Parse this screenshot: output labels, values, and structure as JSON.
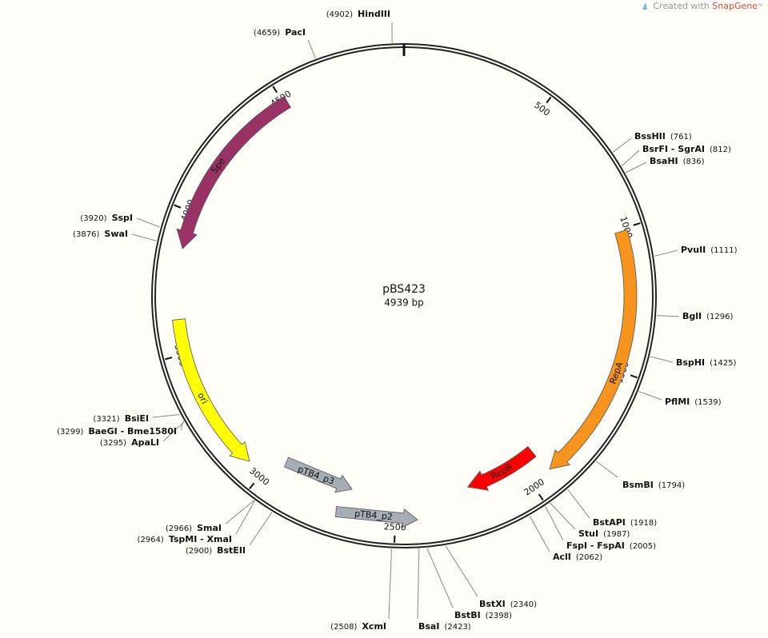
{
  "header": {
    "prefix": "Created with",
    "brand": "SnapGene",
    "tm": "™"
  },
  "plasmid": {
    "name": "pBS423",
    "size": {
      "value": 4939,
      "label": "4939 bp"
    }
  },
  "ticks": [
    500,
    1000,
    1500,
    2000,
    2500,
    3000,
    3500,
    4000,
    4500
  ],
  "features": [
    {
      "name": "Spe",
      "color": "#993366"
    },
    {
      "name": "RepA",
      "color": "#f7941d"
    },
    {
      "name": "ori",
      "color": "#ffff00"
    },
    {
      "name": "RepB",
      "color": "#ff0000"
    },
    {
      "name": "pTB4_p3",
      "color": "#a6adb4"
    },
    {
      "name": "pTB4_p2",
      "color": "#a6adb4"
    }
  ],
  "enzymes": [
    {
      "name": "HindIII",
      "site": {
        "value": 4902,
        "label": "(4902)"
      }
    },
    {
      "name": "PacI",
      "site": {
        "value": 4659,
        "label": "(4659)"
      }
    },
    {
      "name": "BssHII",
      "site": {
        "value": 761,
        "label": "(761)"
      }
    },
    {
      "name": "BsrFI - SgrAI",
      "site": {
        "value": 812,
        "label": "(812)"
      }
    },
    {
      "name": "BsaHI",
      "site": {
        "value": 836,
        "label": "(836)"
      }
    },
    {
      "name": "PvuII",
      "site": {
        "value": 1111,
        "label": "(1111)"
      }
    },
    {
      "name": "BglI",
      "site": {
        "value": 1296,
        "label": "(1296)"
      }
    },
    {
      "name": "BspHI",
      "site": {
        "value": 1425,
        "label": "(1425)"
      }
    },
    {
      "name": "PflMI",
      "site": {
        "value": 1539,
        "label": "(1539)"
      }
    },
    {
      "name": "BsmBI",
      "site": {
        "value": 1794,
        "label": "(1794)"
      }
    },
    {
      "name": "BstAPI",
      "site": {
        "value": 1918,
        "label": "(1918)"
      }
    },
    {
      "name": "StuI",
      "site": {
        "value": 1987,
        "label": "(1987)"
      }
    },
    {
      "name": "FspI - FspAI",
      "site": {
        "value": 2005,
        "label": "(2005)"
      }
    },
    {
      "name": "AclI",
      "site": {
        "value": 2062,
        "label": "(2062)"
      }
    },
    {
      "name": "BstXI",
      "site": {
        "value": 2340,
        "label": "(2340)"
      }
    },
    {
      "name": "BstBI",
      "site": {
        "value": 2398,
        "label": "(2398)"
      }
    },
    {
      "name": "BsaI",
      "site": {
        "value": 2423,
        "label": "(2423)"
      }
    },
    {
      "name": "XcmI",
      "site": {
        "value": 2508,
        "label": "(2508)"
      }
    },
    {
      "name": "BstEII",
      "site": {
        "value": 2900,
        "label": "(2900)"
      }
    },
    {
      "name": "TspMI - XmaI",
      "site": {
        "value": 2964,
        "label": "(2964)"
      }
    },
    {
      "name": "SmaI",
      "site": {
        "value": 2966,
        "label": "(2966)"
      }
    },
    {
      "name": "ApaLI",
      "site": {
        "value": 3295,
        "label": "(3295)"
      }
    },
    {
      "name": "BaeGI - Bme1580I",
      "site": {
        "value": 3299,
        "label": "(3299)"
      }
    },
    {
      "name": "BsiEI",
      "site": {
        "value": 3321,
        "label": "(3321)"
      }
    },
    {
      "name": "SwaI",
      "site": {
        "value": 3876,
        "label": "(3876)"
      }
    },
    {
      "name": "SspI",
      "site": {
        "value": 3920,
        "label": "(3920)"
      }
    }
  ]
}
